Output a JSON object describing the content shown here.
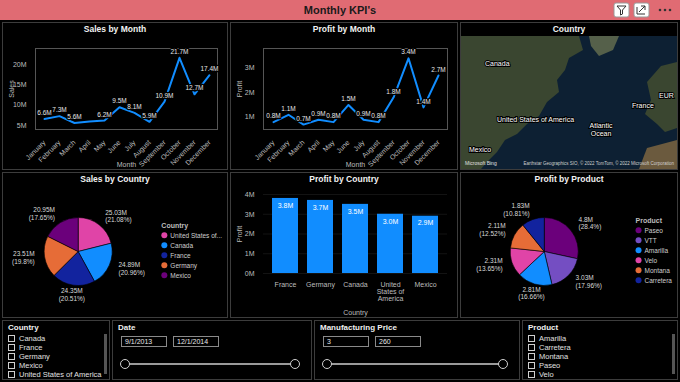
{
  "title": "Monthly KPI's",
  "chart_data": [
    {
      "type": "line",
      "title": "Sales by Month",
      "x_label": "Month",
      "y_label": "Sales",
      "categories": [
        "January",
        "February",
        "March",
        "April",
        "May",
        "June",
        "July",
        "August",
        "September",
        "October",
        "November",
        "December"
      ],
      "values": [
        6.6,
        7.3,
        5.6,
        6.0,
        6.2,
        9.5,
        8.1,
        5.9,
        10.9,
        21.7,
        12.7,
        17.4
      ],
      "value_labels": [
        "6.6M",
        "7.3M",
        "5.6M",
        null,
        "6.2M",
        "9.5M",
        "8.1M",
        "5.9M",
        "10.9M",
        "21.7M",
        "12.7M",
        "17.4M"
      ],
      "color": "#118DFF",
      "ylim": [
        4,
        24
      ],
      "yticks": [
        {
          "value": 5,
          "label": "5M"
        },
        {
          "value": 10,
          "label": "10M"
        },
        {
          "value": 15,
          "label": "15M"
        },
        {
          "value": 20,
          "label": "20M"
        }
      ],
      "grid": false,
      "data_labels": true
    },
    {
      "type": "line",
      "title": "Profit by Month",
      "x_label": "Month",
      "y_label": "Profit",
      "categories": [
        "January",
        "February",
        "March",
        "April",
        "May",
        "June",
        "July",
        "August",
        "September",
        "October",
        "November",
        "December"
      ],
      "values": [
        0.8,
        1.1,
        0.7,
        0.9,
        0.8,
        1.5,
        0.9,
        0.8,
        1.8,
        3.4,
        1.4,
        2.7
      ],
      "value_labels": [
        "0.8M",
        "1.1M",
        "0.7M",
        "0.9M",
        "0.8M",
        "1.5M",
        "0.9M",
        "0.8M",
        "1.8M",
        "3.4M",
        "1.4M",
        "2.7M"
      ],
      "color": "#118DFF",
      "ylim": [
        0.5,
        3.8
      ],
      "yticks": [
        {
          "value": 1,
          "label": "1M"
        },
        {
          "value": 2,
          "label": "2M"
        },
        {
          "value": 3,
          "label": "3M"
        }
      ],
      "grid": false,
      "data_labels": true
    },
    {
      "type": "pie",
      "title": "Sales by Country",
      "legend_title": "Country",
      "categories": [
        "United States of...",
        "Canada",
        "France",
        "Germany",
        "Mexico"
      ],
      "values": [
        25.03,
        24.89,
        24.35,
        23.51,
        20.95
      ],
      "value_labels": [
        "25.03M (21.08%)",
        "24.89M (20.96%)",
        "24.35M (20.51%)",
        "23.51M (19.8%)",
        "20.95M (17.65%)"
      ],
      "colors": [
        "#E044A7",
        "#118DFF",
        "#12239E",
        "#E66C37",
        "#6B007B"
      ],
      "legend": "right",
      "data_labels": true
    },
    {
      "type": "bar",
      "title": "Profit by Country",
      "x_label": "Country",
      "y_label": "Profit",
      "categories": [
        "France",
        "Germany",
        "Canada",
        "United States of America",
        "Mexico"
      ],
      "values": [
        3.8,
        3.7,
        3.5,
        3.0,
        2.9
      ],
      "value_labels": [
        "3.8M",
        "3.7M",
        "3.5M",
        "3.0M",
        "2.9M"
      ],
      "color": "#118DFF",
      "ylim": [
        0,
        4
      ],
      "yticks": [
        {
          "value": 0,
          "label": "0M"
        },
        {
          "value": 1,
          "label": "1M"
        },
        {
          "value": 2,
          "label": "2M"
        },
        {
          "value": 3,
          "label": "3M"
        },
        {
          "value": 4,
          "label": "4M"
        }
      ],
      "grid": true,
      "data_labels": true
    },
    {
      "type": "pie",
      "title": "Profit by Product",
      "legend_title": "Product",
      "categories": [
        "Paseo",
        "VTT",
        "Amarilla",
        "Velo",
        "Montana",
        "Carretera"
      ],
      "values": [
        4.8,
        3.03,
        2.81,
        2.31,
        2.11,
        1.83
      ],
      "value_labels": [
        "4.8M (28.4%)",
        "3.03M (17.96%)",
        "2.81M (16.66%)",
        "2.31M (13.65%)",
        "2.11M (12.52%)",
        "1.83M (10.81%)"
      ],
      "colors": [
        "#6B007B",
        "#744EC2",
        "#118DFF",
        "#E044A7",
        "#E66C37",
        "#12239E"
      ],
      "legend": "right",
      "data_labels": true
    }
  ],
  "map": {
    "title": "Country",
    "labels": [
      "Canada",
      "United States of America",
      "Mexico",
      "Atlantic Ocean",
      "France",
      "EUR"
    ],
    "logo": "Microsoft Bing",
    "credit": "Earthstar Geographics SIO, © 2022 TomTom, © 2022 Microsoft Corporation"
  },
  "slicers": [
    {
      "type": "list",
      "title": "Country",
      "items": [
        "Canada",
        "France",
        "Germany",
        "Mexico",
        "United States of America"
      ]
    },
    {
      "type": "range",
      "title": "Date",
      "from": "9/1/2013",
      "to": "12/1/2014"
    },
    {
      "type": "range",
      "title": "Manufacturing Price",
      "from": 3,
      "to": 260
    },
    {
      "type": "list",
      "title": "Product",
      "items": [
        "Amarilla",
        "Carretera",
        "Montana",
        "Paseo",
        "Velo"
      ]
    }
  ]
}
